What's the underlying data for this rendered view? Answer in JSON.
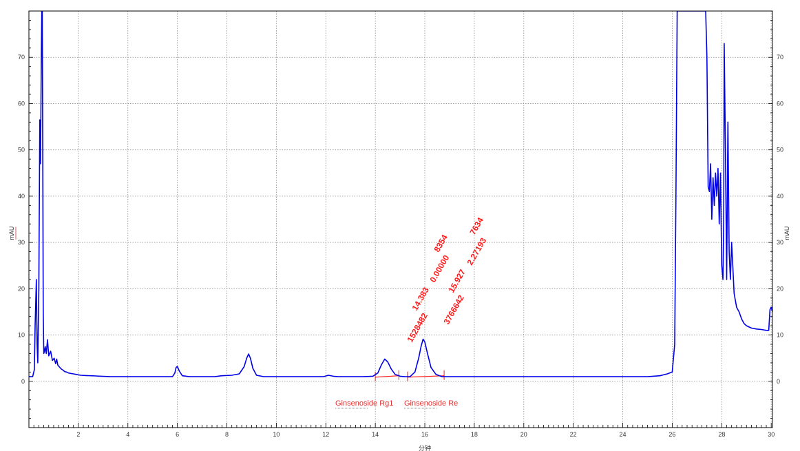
{
  "chart_data": {
    "type": "line",
    "xlabel": "分钟",
    "ylabel_left": "mAU",
    "ylabel_right": "mAU",
    "xlim": [
      0,
      30.05
    ],
    "ylim": [
      -10,
      80
    ],
    "grid": true,
    "x_ticks": [
      2,
      4,
      6,
      8,
      10,
      12,
      14,
      16,
      18,
      20,
      22,
      24,
      26,
      28,
      30
    ],
    "y_ticks": [
      0,
      10,
      20,
      30,
      40,
      50,
      60,
      70
    ],
    "line_color": "#0000e6",
    "annotation_color": "#ff1a1a",
    "series": [
      {
        "x": [
          0.0,
          0.15,
          0.22,
          0.25,
          0.3,
          0.33,
          0.36,
          0.4,
          0.44,
          0.47,
          0.5,
          0.52,
          0.54,
          0.56,
          0.58,
          0.6,
          0.63,
          0.66,
          0.7,
          0.75,
          0.8,
          0.88,
          0.95,
          1.02,
          1.08,
          1.12,
          1.17,
          1.25,
          1.3,
          1.38,
          1.45,
          1.52,
          1.6,
          1.7,
          1.8,
          1.9,
          2.0,
          2.1,
          2.3,
          2.5,
          2.7,
          2.9,
          3.1,
          3.3,
          3.5,
          3.8,
          4.2,
          4.6,
          5.0,
          5.4,
          5.8,
          5.9,
          5.95,
          6.0,
          6.08,
          6.2,
          6.5,
          7.0,
          7.5,
          7.8,
          8.2,
          8.5,
          8.7,
          8.8,
          8.88,
          8.95,
          9.05,
          9.2,
          9.5,
          10.0,
          10.5,
          11.0,
          11.5,
          11.9,
          12.1,
          12.3,
          12.5,
          13.0,
          13.5,
          13.9,
          14.1,
          14.25,
          14.38,
          14.5,
          14.65,
          14.8,
          15.0,
          15.2,
          15.4,
          15.6,
          15.75,
          15.85,
          15.93,
          16.0,
          16.1,
          16.25,
          16.45,
          16.7,
          17.0,
          18.0,
          19.0,
          20.0,
          21.0,
          22.0,
          23.0,
          24.0,
          25.0,
          25.5,
          25.8,
          26.0,
          26.1,
          26.15,
          26.2,
          26.25,
          26.3,
          27.3,
          27.35,
          27.4,
          27.45,
          27.5,
          27.55,
          27.6,
          27.65,
          27.7,
          27.75,
          27.8,
          27.85,
          27.9,
          27.95,
          28.0,
          28.05,
          28.08,
          28.1,
          28.15,
          28.2,
          28.25,
          28.3,
          28.35,
          28.4,
          28.5,
          28.6,
          28.7,
          28.8,
          28.9,
          29.0,
          29.2,
          29.4,
          29.6,
          29.8,
          29.9,
          29.95,
          30.0,
          30.05
        ],
        "y": [
          1.0,
          1.0,
          2.5,
          12.0,
          22.0,
          8.0,
          4.0,
          20.0,
          56.5,
          47.0,
          70.0,
          80.0,
          80.0,
          50.0,
          15.0,
          6.0,
          6.5,
          7.5,
          6.0,
          9.0,
          5.5,
          6.5,
          4.5,
          5.0,
          3.8,
          4.8,
          3.5,
          3.0,
          2.7,
          2.4,
          2.1,
          2.0,
          1.8,
          1.7,
          1.6,
          1.5,
          1.4,
          1.3,
          1.25,
          1.2,
          1.15,
          1.1,
          1.05,
          1.0,
          1.0,
          1.0,
          1.0,
          1.0,
          1.0,
          1.0,
          1.0,
          1.8,
          3.0,
          3.2,
          2.2,
          1.2,
          1.0,
          1.0,
          1.0,
          1.2,
          1.3,
          1.6,
          3.2,
          5.0,
          5.9,
          5.0,
          2.8,
          1.3,
          1.0,
          1.0,
          1.0,
          1.0,
          1.0,
          1.0,
          1.3,
          1.1,
          1.0,
          1.0,
          1.0,
          1.1,
          1.8,
          3.6,
          4.8,
          4.2,
          2.6,
          1.5,
          1.1,
          1.0,
          1.0,
          2.0,
          5.0,
          7.6,
          9.1,
          8.5,
          6.2,
          3.0,
          1.5,
          1.0,
          1.0,
          1.0,
          1.0,
          1.0,
          1.0,
          1.0,
          1.0,
          1.0,
          1.0,
          1.2,
          1.6,
          2.0,
          8.0,
          40.0,
          80.0,
          80.0,
          80.0,
          80.0,
          80.0,
          70.0,
          42.0,
          41.0,
          47.0,
          35.0,
          44.0,
          38.0,
          45.0,
          40.0,
          46.0,
          34.0,
          45.0,
          25.0,
          22.0,
          35.0,
          73.0,
          50.0,
          22.0,
          56.0,
          28.0,
          22.0,
          30.0,
          19.0,
          16.0,
          15.0,
          13.5,
          12.5,
          12.0,
          11.5,
          11.3,
          11.2,
          11.0,
          11.0,
          15.5,
          16.0,
          15.0
        ]
      }
    ],
    "peaks": [
      {
        "name": "Ginsenoside Rg1",
        "rt": "14.383",
        "area": "1528482",
        "amount": "0.00000",
        "extra": "8354",
        "start": 14.0,
        "end": 14.95
      },
      {
        "name": "Ginsenoside Re",
        "rt": "15.927",
        "area": "3766642",
        "amount": "2.27193",
        "extra": "7634",
        "start": 15.3,
        "end": 16.78
      }
    ]
  }
}
